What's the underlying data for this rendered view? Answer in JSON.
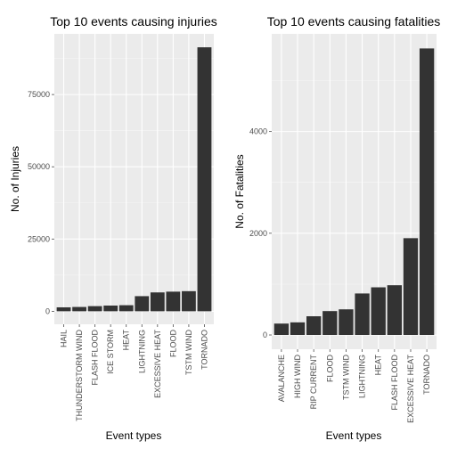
{
  "chart_data": [
    {
      "type": "bar",
      "title": "Top 10 events causing injuries",
      "xlabel": "Event types",
      "ylabel": "No. of Injuries",
      "categories": [
        "HAIL",
        "THUNDERSTORM WIND",
        "FLASH FLOOD",
        "ICE STORM",
        "HEAT",
        "LIGHTNING",
        "EXCESSIVE HEAT",
        "FLOOD",
        "TSTM WIND",
        "TORNADO"
      ],
      "values": [
        1361,
        1488,
        1777,
        1975,
        2100,
        5230,
        6525,
        6789,
        6957,
        91346
      ],
      "yticks": [
        0,
        25000,
        50000,
        75000
      ],
      "ylim": [
        -4500,
        96000
      ],
      "bar_color": "#333333",
      "panel_color": "#ebebeb",
      "grid": true
    },
    {
      "type": "bar",
      "title": "Top 10 events causing fatalities",
      "xlabel": "Event types",
      "ylabel": "No. of Fatalities",
      "categories": [
        "AVALANCHE",
        "HIGH WIND",
        "RIP CURRENT",
        "FLOOD",
        "TSTM WIND",
        "LIGHTNING",
        "HEAT",
        "FLASH FLOOD",
        "EXCESSIVE HEAT",
        "TORNADO"
      ],
      "values": [
        224,
        248,
        368,
        470,
        504,
        816,
        937,
        978,
        1903,
        5633
      ],
      "yticks": [
        0,
        2000,
        4000
      ],
      "ylim": [
        -280,
        5920
      ],
      "bar_color": "#333333",
      "panel_color": "#ebebeb",
      "grid": true
    }
  ]
}
